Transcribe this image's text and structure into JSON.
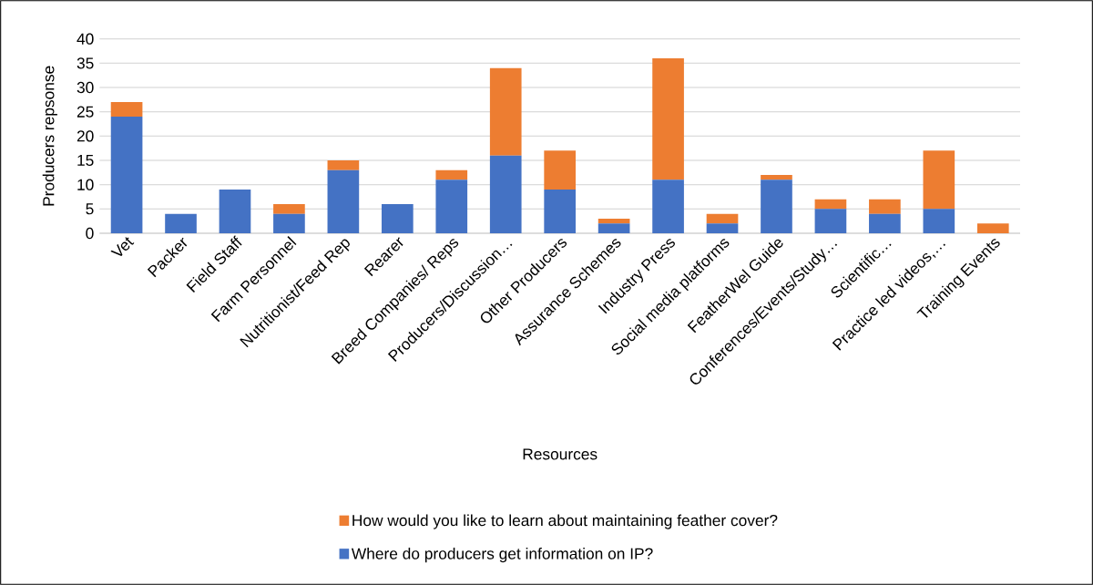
{
  "chart_data": {
    "type": "bar",
    "stacked": true,
    "xlabel": "Resources",
    "ylabel": "Producers repsonse",
    "categories": [
      "Vet",
      "Packer",
      "Field Staff",
      "Farm Personnel",
      "Nutritionist/Feed Rep",
      "Rearer",
      "Breed Companies/ Reps",
      "Producers/Discussion…",
      "Other Producers",
      "Assurance Schemes",
      "Industry Press",
      "Social media platforms",
      "FeatherWel  Guide",
      "Conferences/Events/Study…",
      "Scientific…",
      "Practice led videos,…",
      "Training Events"
    ],
    "series": [
      {
        "name": "Where do producers get information on IP?",
        "color": "#4472c4",
        "values": [
          24,
          4,
          9,
          4,
          13,
          6,
          11,
          16,
          9,
          2,
          11,
          2,
          11,
          5,
          4,
          5,
          0
        ]
      },
      {
        "name": "How would you like to learn about maintaining feather cover?",
        "color": "#ed7d31",
        "values": [
          3,
          0,
          0,
          2,
          2,
          0,
          2,
          18,
          8,
          1,
          25,
          2,
          1,
          2,
          3,
          12,
          2
        ]
      }
    ],
    "ylim": [
      0,
      40
    ],
    "yticks": [
      0,
      5,
      10,
      15,
      20,
      25,
      30,
      35,
      40
    ],
    "grid": "y",
    "legend": "bottom"
  }
}
